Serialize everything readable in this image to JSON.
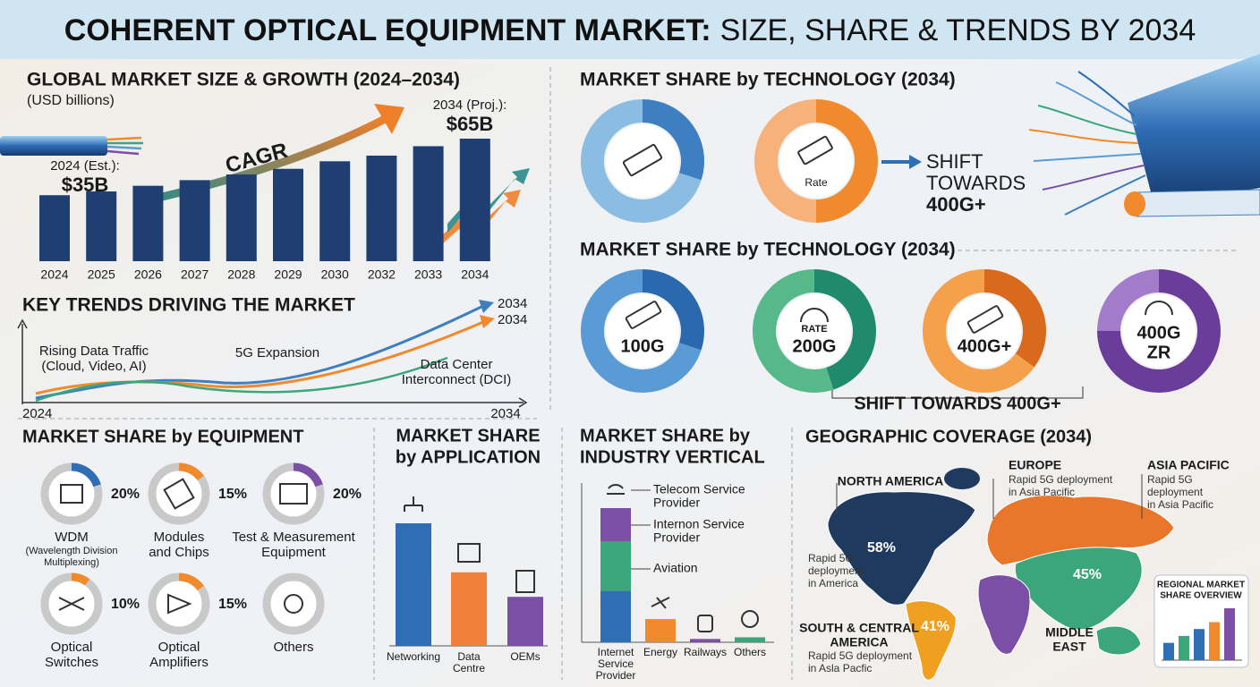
{
  "header": {
    "title_bold": "COHERENT OPTICAL EQUIPMENT MARKET:",
    "title_rest": "SIZE, SHARE & TRENDS BY 2034"
  },
  "market_size": {
    "type": "bar",
    "title": "GLOBAL MARKET SIZE & GROWTH (2024–2034)",
    "unit": "(USD billions)",
    "categories": [
      "2024",
      "2025",
      "2026",
      "2027",
      "2028",
      "2029",
      "2030",
      "2032",
      "2033",
      "2034"
    ],
    "values": [
      35,
      37,
      40,
      43,
      46,
      49,
      53,
      56,
      61,
      65
    ],
    "value_labels": [
      "$35B",
      null,
      null,
      null,
      null,
      null,
      null,
      null,
      null,
      "$65B"
    ],
    "annotations": {
      "start": "2024 (Est.):",
      "end": "2034 (Proj.):",
      "arrow": "CAGR"
    },
    "color": "#1f3f73"
  },
  "key_trends": {
    "title": "KEY TRENDS DRIVING THE MARKET",
    "end_labels": [
      "2034",
      "2034"
    ],
    "drivers": [
      [
        "Rising Data Traffic",
        "(Cloud, Video, AI)"
      ],
      [
        "5G Expansion"
      ],
      [
        "Data Center",
        "Interconnect (DCI)"
      ]
    ],
    "axis_start": "2024",
    "axis_end": "2034"
  },
  "technology_top": {
    "type": "pie",
    "title": "MARKET SHARE by TECHNOLOGY (2034)",
    "donuts": [
      {
        "values": [
          30,
          70
        ],
        "colors": [
          "#3d7fc1",
          "#8bbde3"
        ]
      },
      {
        "icon_label": "Rate",
        "values": [
          50,
          50
        ],
        "colors": [
          "#f08a2c",
          "#f6b27a"
        ]
      }
    ],
    "shift_label": [
      "SHIFT",
      "TOWARDS",
      "400G+"
    ]
  },
  "technology": {
    "type": "pie",
    "title": "MARKET SHARE by TECHNOLOGY (2034)",
    "donuts": [
      {
        "label": [
          "100G"
        ],
        "values": [
          30,
          70
        ],
        "colors": [
          "#2a69ad",
          "#5b9bd5"
        ]
      },
      {
        "icon_label": "RATE",
        "label": [
          "200G"
        ],
        "values": [
          45,
          55
        ],
        "colors": [
          "#1f8a6c",
          "#57b98a"
        ]
      },
      {
        "label": [
          "400G+"
        ],
        "values": [
          35,
          65
        ],
        "colors": [
          "#d9691c",
          "#f5a04a"
        ]
      },
      {
        "label": [
          "400G",
          "ZR"
        ],
        "values": [
          75,
          25
        ],
        "colors": [
          "#6a3d9a",
          "#a27ccb"
        ]
      }
    ],
    "shift_label": "SHIFT TOWARDS 400G+"
  },
  "equipment": {
    "type": "pie",
    "title": "MARKET SHARE by EQUIPMENT",
    "items": [
      {
        "name": [
          "WDM"
        ],
        "note": [
          "(Wavelength Division",
          "Multiplexing)"
        ],
        "value": 20,
        "value_label": "20%",
        "color": "#2f6db5"
      },
      {
        "name": [
          "Modules",
          "and Chips"
        ],
        "value": 15,
        "value_label": "15%",
        "color": "#f08a2c"
      },
      {
        "name": [
          "Test & Measurement",
          "Equipment"
        ],
        "value": 20,
        "value_label": "20%",
        "color": "#7b4fa6"
      },
      {
        "name": [
          "Optical",
          "Switches"
        ],
        "value": 10,
        "value_label": "10%",
        "color": "#f08a2c"
      },
      {
        "name": [
          "Optical",
          "Amplifiers"
        ],
        "value": 15,
        "value_label": "15%",
        "color": "#f08a2c"
      },
      {
        "name": [
          "Others"
        ]
      }
    ]
  },
  "application": {
    "type": "bar",
    "title": [
      "MARKET SHARE",
      "by APPLICATION"
    ],
    "categories": [
      [
        "Networking"
      ],
      [
        "Data",
        "Centre"
      ],
      [
        "OEMs"
      ]
    ],
    "values": [
      50,
      30,
      20
    ],
    "colors": [
      "#2f6db5",
      "#f07f3a",
      "#7b4fa6"
    ]
  },
  "industry": {
    "type": "bar",
    "title": [
      "MARKET SHARE by",
      "INDUSTRY VERTICAL"
    ],
    "bars": [
      {
        "category": [
          "Internet",
          "Service",
          "Provider"
        ],
        "top_label": [
          "Telecom Service",
          "Provider"
        ],
        "segments": [
          {
            "value": 31,
            "color": "#2f6db5"
          },
          {
            "value": 30,
            "color": "#3aa67a",
            "label": [
              "Aviation"
            ]
          },
          {
            "value": 20,
            "color": "#7b4fa6",
            "label": [
              "Internon Service",
              "Provider"
            ]
          }
        ]
      },
      {
        "category": [
          "Energy"
        ],
        "segments": [
          {
            "value": 14,
            "color": "#f08a2c"
          }
        ]
      },
      {
        "category": [
          "Railways"
        ],
        "segments": [
          {
            "value": 2,
            "color": "#7b4fa6"
          }
        ]
      },
      {
        "category": [
          "Others"
        ],
        "segments": [
          {
            "value": 3,
            "color": "#3aa67a"
          }
        ]
      }
    ]
  },
  "geography": {
    "title": "GEOGRAPHIC COVERAGE (2034)",
    "regions": [
      {
        "name": [
          "NORTH AMERICA"
        ],
        "note": [
          "Rapid 5G",
          "deployment",
          "in America"
        ],
        "value": 58,
        "value_label": "58%",
        "color": "#1e3a5f"
      },
      {
        "name": [
          "EUROPE"
        ],
        "note": [
          "Rapid 5G deployment",
          "in Asia Pacific"
        ],
        "color": "#e8762b"
      },
      {
        "name": [
          "ASIA PACIFIC"
        ],
        "note": [
          "Rapid 5G",
          "deployment",
          "in Asia Pacific"
        ],
        "value": 45,
        "value_label": "45%",
        "color": "#3aa67a"
      },
      {
        "name": [
          "SOUTH & CENTRAL",
          "AMERICA"
        ],
        "note": [
          "Rapid 5G deployment",
          "in Asla Pacfic"
        ],
        "value": 41,
        "value_label": "41%",
        "color": "#f0a020"
      },
      {
        "name": [
          "MIDDLE",
          "EAST"
        ],
        "color": "#7b4fa6"
      }
    ],
    "overview": {
      "title": [
        "REGIONAL MARKET",
        "SHARE OVERVIEW"
      ],
      "values": [
        20,
        28,
        36,
        44,
        60
      ],
      "colors": [
        "#2f6db5",
        "#3aa67a",
        "#2f6db5",
        "#f08a2c",
        "#7b4fa6"
      ]
    }
  }
}
